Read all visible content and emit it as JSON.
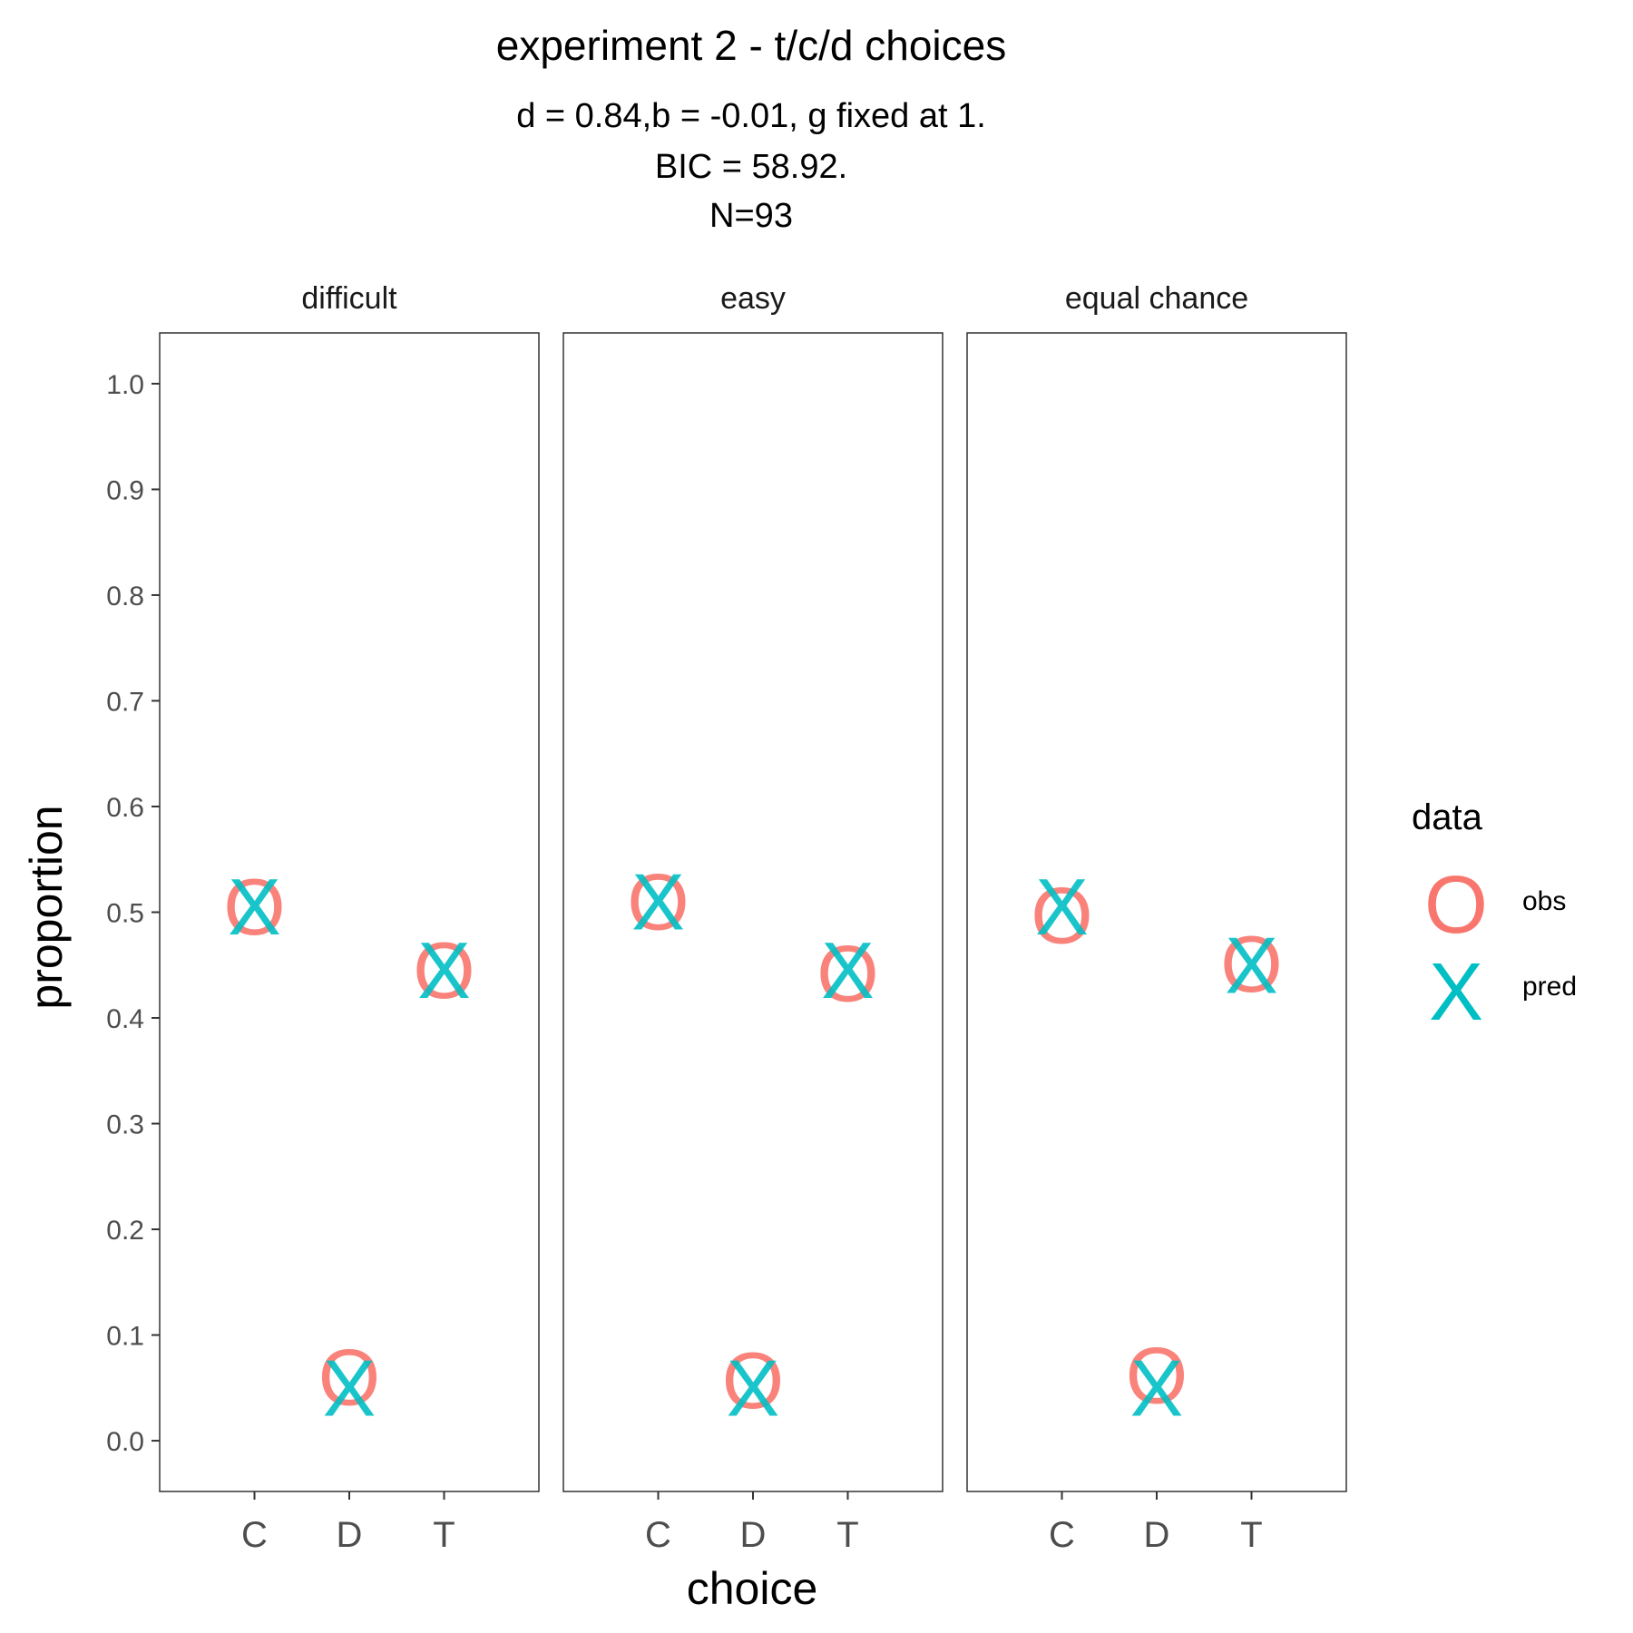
{
  "chart_data": {
    "type": "scatter",
    "title": "experiment 2 - t/c/d choices",
    "subtitle_lines": [
      "d = 0.84,b = -0.01, g fixed at 1.",
      "BIC = 58.92.",
      "N=93"
    ],
    "xlabel": "choice",
    "ylabel": "proportion",
    "categories": [
      "C",
      "D",
      "T"
    ],
    "ylim": [
      -0.048,
      1.048
    ],
    "yticks": [
      0.0,
      0.1,
      0.2,
      0.3,
      0.4,
      0.5,
      0.6,
      0.7,
      0.8,
      0.9,
      1.0
    ],
    "ytick_labels": [
      "0.0",
      "0.1",
      "0.2",
      "0.3",
      "0.4",
      "0.5",
      "0.6",
      "0.7",
      "0.8",
      "0.9",
      "1.0"
    ],
    "grid": false,
    "legend": {
      "title": "data",
      "placement": "right",
      "entries": [
        {
          "name": "obs",
          "glyph": "O",
          "color": "#F8766D"
        },
        {
          "name": "pred",
          "glyph": "X",
          "color": "#00BFC4"
        }
      ]
    },
    "panels": [
      {
        "label": "difficult",
        "series": [
          {
            "name": "obs",
            "values": [
              0.505,
              0.06,
              0.445
            ]
          },
          {
            "name": "pred",
            "values": [
              0.505,
              0.05,
              0.445
            ]
          }
        ]
      },
      {
        "label": "easy",
        "series": [
          {
            "name": "obs",
            "values": [
              0.51,
              0.057,
              0.442
            ]
          },
          {
            "name": "pred",
            "values": [
              0.51,
              0.05,
              0.445
            ]
          }
        ]
      },
      {
        "label": "equal chance",
        "series": [
          {
            "name": "obs",
            "values": [
              0.497,
              0.062,
              0.451
            ]
          },
          {
            "name": "pred",
            "values": [
              0.505,
              0.05,
              0.45
            ]
          }
        ]
      }
    ]
  }
}
